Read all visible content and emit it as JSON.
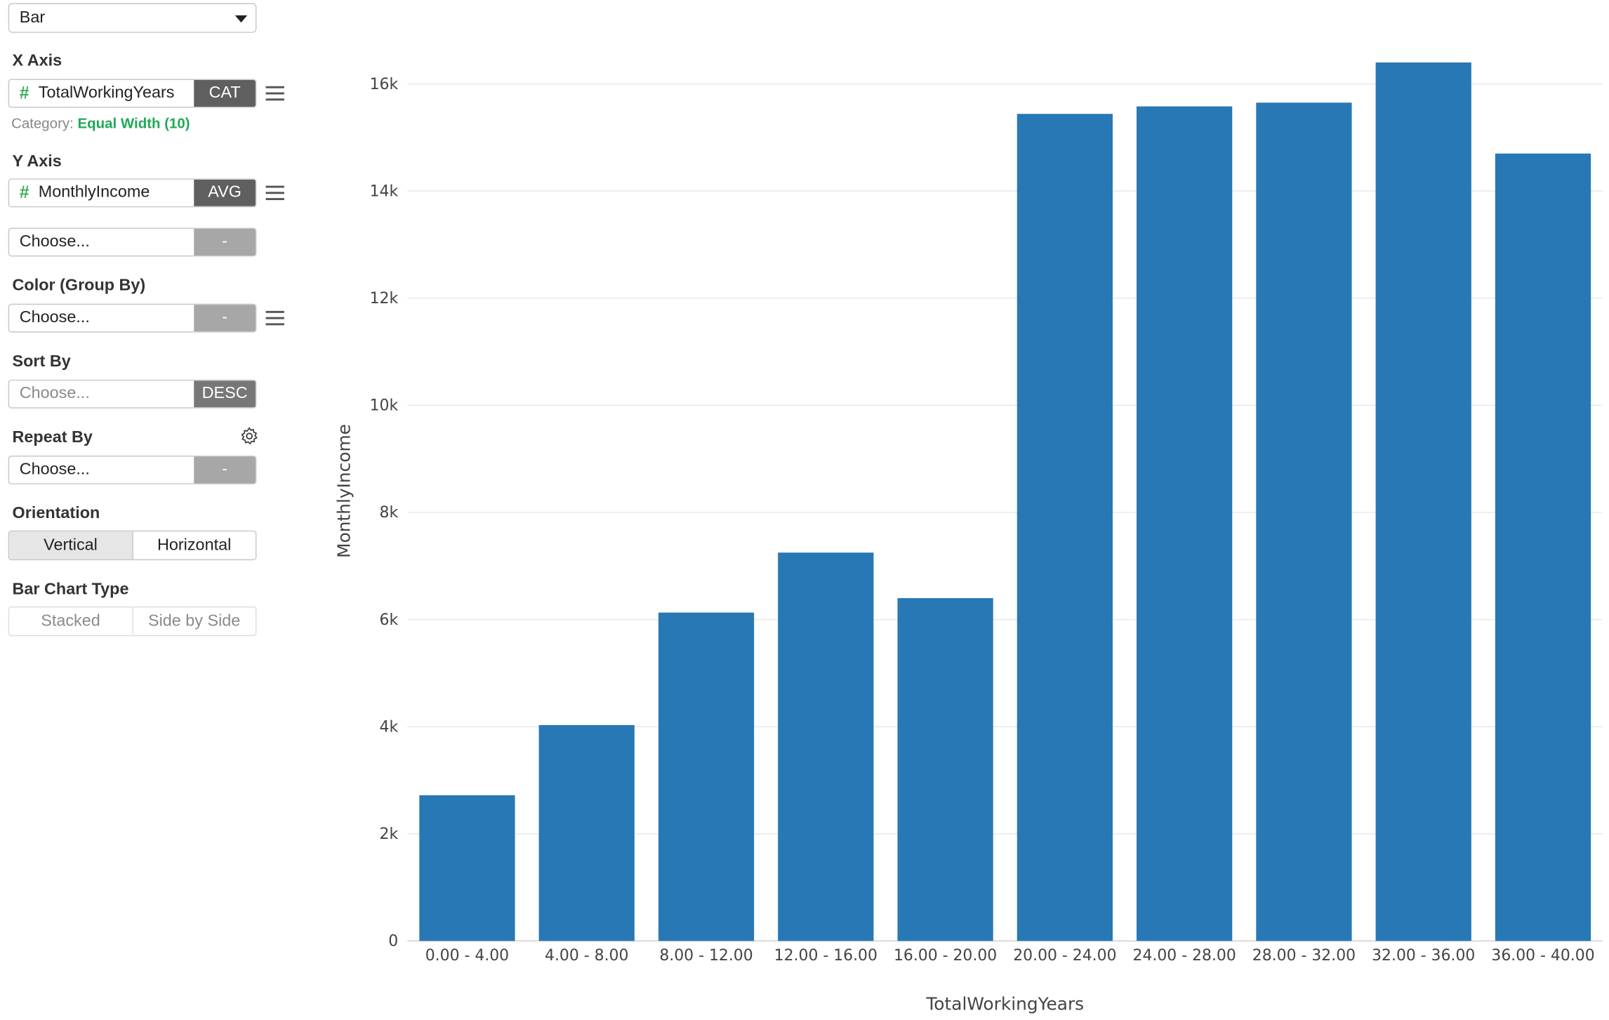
{
  "chart_type_select": {
    "value": "Bar"
  },
  "x_axis": {
    "label": "X Axis",
    "column": "TotalWorkingYears",
    "tag": "CAT",
    "category_prefix": "Category:",
    "category_value": "Equal Width (10)"
  },
  "y_axis": {
    "label": "Y Axis",
    "column": "MonthlyIncome",
    "tag": "AVG",
    "extra_placeholder": "Choose...",
    "extra_tag": "-"
  },
  "color_group": {
    "label": "Color (Group By)",
    "placeholder": "Choose...",
    "tag": "-"
  },
  "sort_by": {
    "label": "Sort By",
    "placeholder": "Choose...",
    "tag": "DESC"
  },
  "repeat_by": {
    "label": "Repeat By",
    "placeholder": "Choose...",
    "tag": "-"
  },
  "orientation": {
    "label": "Orientation",
    "options": [
      "Vertical",
      "Horizontal"
    ],
    "selected": "Vertical"
  },
  "bar_chart_type": {
    "label": "Bar Chart Type",
    "options": [
      "Stacked",
      "Side by Side"
    ]
  },
  "colors": {
    "bar": "#2878b5",
    "accent": "#1faa56",
    "hash": "#3bab5c"
  },
  "chart_data": {
    "type": "bar",
    "categories": [
      "0.00 - 4.00",
      "4.00 - 8.00",
      "8.00 - 12.00",
      "12.00 - 16.00",
      "16.00 - 20.00",
      "20.00 - 24.00",
      "24.00 - 28.00",
      "28.00 - 32.00",
      "32.00 - 36.00",
      "36.00 - 40.00"
    ],
    "values": [
      2720,
      4030,
      6130,
      7250,
      6400,
      15440,
      15580,
      15650,
      16400,
      14700
    ],
    "xlabel": "TotalWorkingYears",
    "ylabel": "MonthlyIncome",
    "ylim": [
      0,
      16800
    ],
    "yticks": [
      0,
      2000,
      4000,
      6000,
      8000,
      10000,
      12000,
      14000,
      16000
    ],
    "ytick_labels": [
      "0",
      "2k",
      "4k",
      "6k",
      "8k",
      "10k",
      "12k",
      "14k",
      "16k"
    ],
    "grid": true
  }
}
